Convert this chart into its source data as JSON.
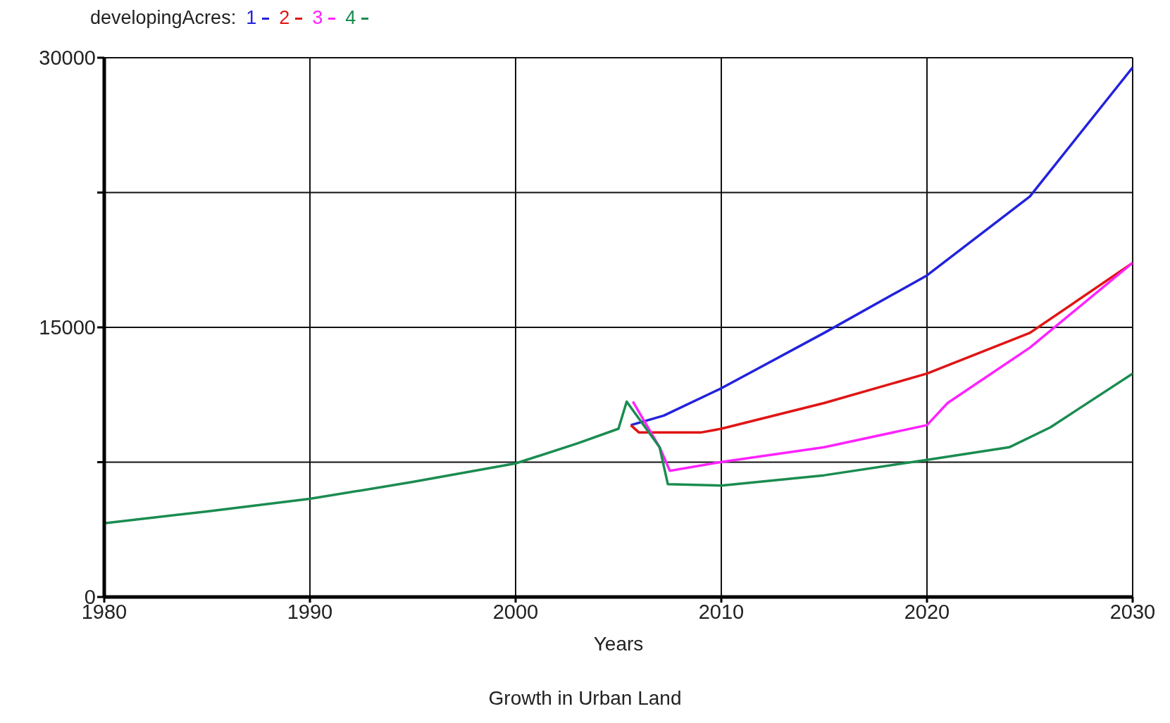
{
  "chart_data": {
    "type": "line",
    "title": "Growth in Urban Land",
    "xlabel": "Years",
    "legend_title": "developingAcres:",
    "legend": "top left",
    "grid": true,
    "marker": "none",
    "line_style": "solid",
    "xlim": [
      1980,
      2030
    ],
    "xticks": [
      1980,
      1990,
      2000,
      2010,
      2020,
      2030
    ],
    "ylim": [
      0,
      30000
    ],
    "yticks": [
      0,
      {
        "value": 7500,
        "label": null
      },
      15000,
      {
        "value": 22500,
        "label": null
      },
      30000
    ],
    "series": [
      {
        "name": "1",
        "color": "#2222dd",
        "x": [
          2005.6,
          2007.2,
          2010,
          2015,
          2020,
          2025,
          2030
        ],
        "values": [
          9560,
          10090,
          11610,
          14690,
          17890,
          22280,
          29460
        ]
      },
      {
        "name": "2",
        "color": "#e01414",
        "x": [
          2005.6,
          2006,
          2009,
          2010,
          2015,
          2020,
          2025,
          2030
        ],
        "values": [
          9560,
          9150,
          9150,
          9360,
          10790,
          12430,
          14690,
          18590
        ]
      },
      {
        "name": "3",
        "color": "#ff22ff",
        "x": [
          2005.7,
          2007,
          2007.5,
          2010,
          2015,
          2020,
          2021,
          2025,
          2030
        ],
        "values": [
          10870,
          8330,
          7020,
          7510,
          8330,
          9560,
          10790,
          13870,
          18590
        ]
      },
      {
        "name": "4",
        "color": "#1a8c50",
        "x": [
          1980,
          1985,
          1990,
          1995,
          2000,
          2003,
          2005,
          2005.4,
          2007,
          2007.4,
          2010,
          2015,
          2020,
          2024,
          2026,
          2030
        ],
        "values": [
          4100,
          4760,
          5460,
          6400,
          7430,
          8540,
          9360,
          10870,
          8330,
          6280,
          6200,
          6770,
          7630,
          8330,
          9440,
          12430
        ]
      }
    ]
  }
}
